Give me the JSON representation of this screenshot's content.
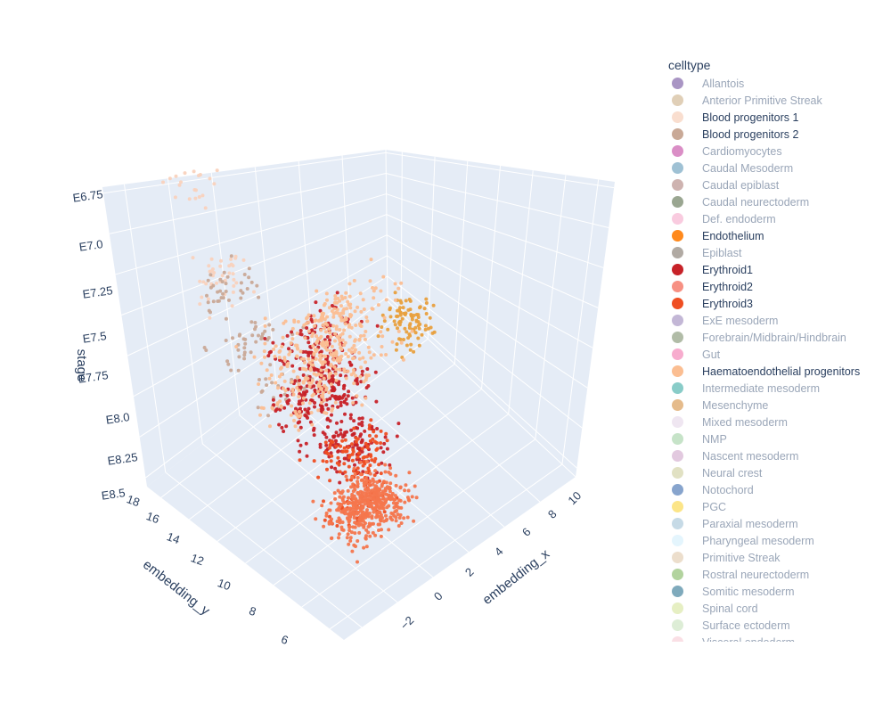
{
  "chart_data": {
    "type": "scatter",
    "subtype": "3d-scatter",
    "axes": {
      "x": {
        "title": "embedding_x",
        "ticks": [
          "−2",
          "0",
          "2",
          "4",
          "6",
          "8",
          "10"
        ],
        "range": [
          -3,
          11
        ]
      },
      "y": {
        "title": "embedding_y",
        "ticks": [
          "6",
          "8",
          "10",
          "12",
          "14",
          "16",
          "18"
        ],
        "range": [
          5,
          18
        ]
      },
      "z": {
        "title": "stage",
        "ticks": [
          "E6.75",
          "E7.0",
          "E7.25",
          "E7.5",
          "E7.75",
          "E8.0",
          "E8.25",
          "E8.5"
        ]
      }
    },
    "grid": true,
    "legend": {
      "title": "celltype",
      "placement": "right",
      "items": [
        {
          "name": "Allantois",
          "color": "#532c8a",
          "visible": false
        },
        {
          "name": "Anterior Primitive Streak",
          "color": "#c19f70",
          "visible": false
        },
        {
          "name": "Blood progenitors 1",
          "color": "#f9decf",
          "visible": true
        },
        {
          "name": "Blood progenitors 2",
          "color": "#c9a997",
          "visible": true
        },
        {
          "name": "Cardiomyocytes",
          "color": "#b51d8d",
          "visible": false
        },
        {
          "name": "Caudal Mesoderm",
          "color": "#3f84aa",
          "visible": false
        },
        {
          "name": "Caudal epiblast",
          "color": "#9e6762",
          "visible": false
        },
        {
          "name": "Caudal neurectoderm",
          "color": "#354e23",
          "visible": false
        },
        {
          "name": "Def. endoderm",
          "color": "#f397c0",
          "visible": false
        },
        {
          "name": "Endothelium",
          "color": "#ff891c",
          "visible": true
        },
        {
          "name": "Epiblast",
          "color": "#635547",
          "visible": false
        },
        {
          "name": "Erythroid1",
          "color": "#c72228",
          "visible": true
        },
        {
          "name": "Erythroid2",
          "color": "#f79083",
          "visible": true
        },
        {
          "name": "Erythroid3",
          "color": "#ef4e22",
          "visible": true
        },
        {
          "name": "ExE mesoderm",
          "color": "#8870ad",
          "visible": false
        },
        {
          "name": "Forebrain/Midbrain/Hindbrain",
          "color": "#647a4f",
          "visible": false
        },
        {
          "name": "Gut",
          "color": "#ef5a9d",
          "visible": false
        },
        {
          "name": "Haematoendothelial progenitors",
          "color": "#fbbe92",
          "visible": true
        },
        {
          "name": "Intermediate mesoderm",
          "color": "#139992",
          "visible": false
        },
        {
          "name": "Mesenchyme",
          "color": "#cc7818",
          "visible": false
        },
        {
          "name": "Mixed mesoderm",
          "color": "#dfcde4",
          "visible": false
        },
        {
          "name": "NMP",
          "color": "#8ec792",
          "visible": false
        },
        {
          "name": "Nascent mesoderm",
          "color": "#c594bf",
          "visible": false
        },
        {
          "name": "Neural crest",
          "color": "#c3c388",
          "visible": false
        },
        {
          "name": "Notochord",
          "color": "#0f4a9c",
          "visible": false
        },
        {
          "name": "PGC",
          "color": "#facb12",
          "visible": false
        },
        {
          "name": "Paraxial mesoderm",
          "color": "#8db5ce",
          "visible": false
        },
        {
          "name": "Pharyngeal mesoderm",
          "color": "#c9ebfb",
          "visible": false
        },
        {
          "name": "Primitive Streak",
          "color": "#dabe99",
          "visible": false
        },
        {
          "name": "Rostral neurectoderm",
          "color": "#65a83e",
          "visible": false
        },
        {
          "name": "Somitic mesoderm",
          "color": "#005579",
          "visible": false
        },
        {
          "name": "Spinal cord",
          "color": "#cde088",
          "visible": false
        },
        {
          "name": "Surface ectoderm",
          "color": "#bbdcad",
          "visible": false
        },
        {
          "name": "Visceral endoderm",
          "color": "#f6bfcb",
          "visible": false
        }
      ]
    },
    "series": [
      {
        "name": "Blood progenitors 1",
        "color": "#f9d2bd",
        "clusters": [
          {
            "x_range": [
              -3,
              1
            ],
            "y_range": [
              6,
              9
            ],
            "stage": "E7.0",
            "count": 20
          },
          {
            "x_range": [
              -3,
              2
            ],
            "y_range": [
              6,
              10
            ],
            "stage": "E7.5",
            "count": 40
          }
        ]
      },
      {
        "name": "Blood progenitors 2",
        "color": "#c9a997",
        "clusters": [
          {
            "x_range": [
              -2,
              2
            ],
            "y_range": [
              6,
              10
            ],
            "stage": "E7.5",
            "count": 35
          },
          {
            "x_range": [
              -1,
              3
            ],
            "y_range": [
              6,
              11
            ],
            "stage": "E7.75",
            "count": 40
          },
          {
            "x_range": [
              0,
              4
            ],
            "y_range": [
              7,
              12
            ],
            "stage": "E8.0",
            "count": 25
          }
        ]
      },
      {
        "name": "Endothelium",
        "color": "#e8a03e",
        "clusters": [
          {
            "x_range": [
              -1,
              3
            ],
            "y_range": [
              15,
              18
            ],
            "stage": "E8.25",
            "count": 90
          }
        ]
      },
      {
        "name": "Erythroid1",
        "color": "#c72228",
        "clusters": [
          {
            "x_range": [
              3,
              8
            ],
            "y_range": [
              6,
              12
            ],
            "stage": "E7.5",
            "count": 110
          },
          {
            "x_range": [
              3,
              8
            ],
            "y_range": [
              6,
              12
            ],
            "stage": "E7.75",
            "count": 200
          },
          {
            "x_range": [
              4,
              9
            ],
            "y_range": [
              7,
              12
            ],
            "stage": "E8.0",
            "count": 130
          }
        ]
      },
      {
        "name": "Erythroid2",
        "color": "#ef4e22",
        "clusters": [
          {
            "x_range": [
              5,
              9
            ],
            "y_range": [
              7,
              12
            ],
            "stage": "E8.0",
            "count": 90
          },
          {
            "x_range": [
              5,
              9
            ],
            "y_range": [
              7,
              12
            ],
            "stage": "E8.25",
            "count": 50
          }
        ]
      },
      {
        "name": "Erythroid3",
        "color": "#f4764d",
        "clusters": [
          {
            "x_range": [
              5,
              10
            ],
            "y_range": [
              7,
              12
            ],
            "stage": "E8.25",
            "count": 420
          }
        ]
      },
      {
        "name": "Haematoendothelial progenitors",
        "color": "#fbbe92",
        "clusters": [
          {
            "x_range": [
              -2,
              3
            ],
            "y_range": [
              8,
              17
            ],
            "stage": "E8.0",
            "count": 200
          },
          {
            "x_range": [
              -2,
              3
            ],
            "y_range": [
              8,
              17
            ],
            "stage": "E8.25",
            "count": 200
          }
        ]
      }
    ]
  }
}
